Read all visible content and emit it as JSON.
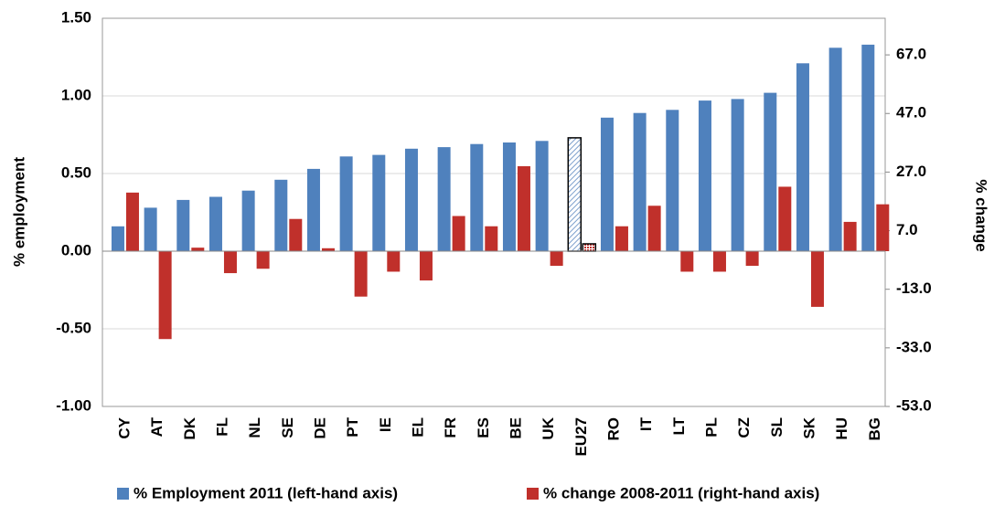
{
  "chart_data": {
    "type": "bar",
    "categories": [
      "CY",
      "AT",
      "DK",
      "FL",
      "NL",
      "SE",
      "DE",
      "PT",
      "IE",
      "EL",
      "FR",
      "ES",
      "BE",
      "UK",
      "EU27",
      "RO",
      "IT",
      "LT",
      "PL",
      "CZ",
      "SL",
      "SK",
      "HU",
      "BG"
    ],
    "series": [
      {
        "name": "% Employment 2011 (left-hand axis)",
        "color": "#4f81bd",
        "axis": "y",
        "values": [
          0.16,
          0.28,
          0.33,
          0.35,
          0.39,
          0.46,
          0.53,
          0.61,
          0.62,
          0.66,
          0.67,
          0.69,
          0.7,
          0.71,
          0.73,
          0.86,
          0.89,
          0.91,
          0.97,
          0.98,
          1.02,
          1.21,
          1.31,
          1.33
        ]
      },
      {
        "name": "% change 2008-2011 (right-hand axis)",
        "color": "#c0302b",
        "axis": "y2",
        "values": [
          20,
          -30,
          1.2,
          -7.5,
          -6,
          11,
          1,
          -15.5,
          -7,
          -10,
          12,
          8.5,
          29,
          -5,
          2.5,
          8.5,
          15.5,
          -7,
          -7,
          -5,
          22,
          -19,
          10,
          16
        ]
      }
    ],
    "highlight_categories": [
      "EU27"
    ],
    "ylabel": "% employment",
    "y2label": "% change",
    "ylim": [
      -1,
      1.5
    ],
    "yticks": [
      {
        "value": -1,
        "label": "-1.00"
      },
      {
        "value": -0.5,
        "label": "-0.50"
      },
      {
        "value": 0,
        "label": "0.00"
      },
      {
        "value": 0.5,
        "label": "0.50"
      },
      {
        "value": 1,
        "label": "1.00"
      },
      {
        "value": 1.5,
        "label": "1.50"
      }
    ],
    "y2lim": [
      -53,
      79.5
    ],
    "y2ticks": [
      {
        "value": -53,
        "label": "-53.0"
      },
      {
        "value": -33,
        "label": "-33.0"
      },
      {
        "value": -13,
        "label": "-13.0"
      },
      {
        "value": 7,
        "label": "7.0"
      },
      {
        "value": 27,
        "label": "27.0"
      },
      {
        "value": 47,
        "label": "47.0"
      },
      {
        "value": 67,
        "label": "67.0"
      }
    ],
    "grid": true,
    "legend": "bottom"
  }
}
